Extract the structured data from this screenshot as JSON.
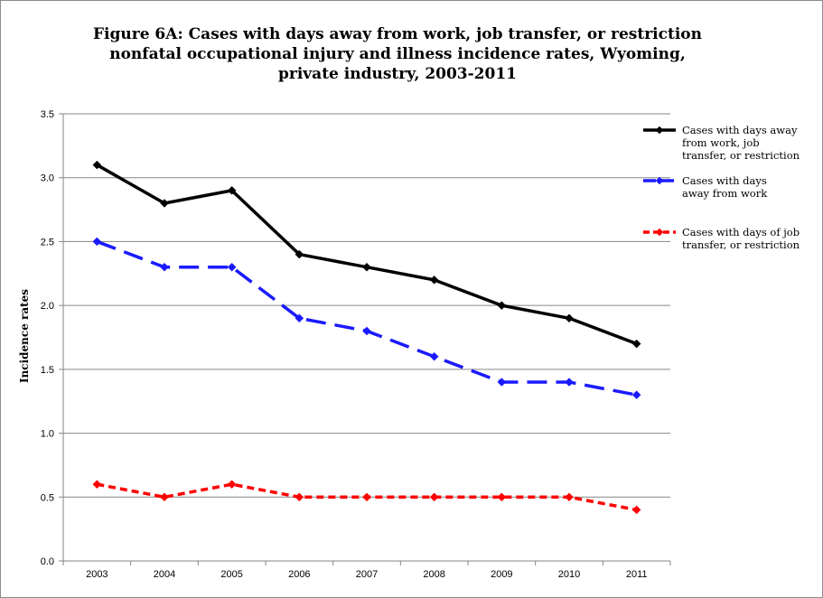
{
  "chart_data": {
    "type": "line",
    "title_lines": [
      "Figure 6A: Cases with days away from work, job transfer, or restriction",
      "nonfatal occupational injury and illness incidence rates, Wyoming,",
      "private industry, 2003-2011"
    ],
    "ylabel": "Incidence rates",
    "xlabel": "",
    "categories": [
      "2003",
      "2004",
      "2005",
      "2006",
      "2007",
      "2008",
      "2009",
      "2010",
      "2011"
    ],
    "ylim": [
      0,
      3.5
    ],
    "yticks": [
      "0.0",
      "0.5",
      "1.0",
      "1.5",
      "2.0",
      "2.5",
      "3.0",
      "3.5"
    ],
    "grid": "horizontal",
    "legend_position": "right",
    "series": [
      {
        "name": "Cases with days away from work, job transfer, or restriction",
        "legend_lines": [
          "Cases with days away",
          "from work, job",
          "transfer, or restriction"
        ],
        "values": [
          3.1,
          2.8,
          2.9,
          2.4,
          2.3,
          2.2,
          2.0,
          1.9,
          1.7
        ],
        "color": "#000000",
        "style": "solid"
      },
      {
        "name": "Cases with days away from work",
        "legend_lines": [
          "Cases with days",
          "away from work"
        ],
        "values": [
          2.5,
          2.3,
          2.3,
          1.9,
          1.8,
          1.6,
          1.4,
          1.4,
          1.3
        ],
        "color": "#1a1aff",
        "style": "long-dash"
      },
      {
        "name": "Cases with days of job transfer, or restriction",
        "legend_lines": [
          "Cases with days of job",
          "transfer, or restriction"
        ],
        "values": [
          0.6,
          0.5,
          0.6,
          0.5,
          0.5,
          0.5,
          0.5,
          0.5,
          0.4
        ],
        "color": "#ff0000",
        "style": "short-dash"
      }
    ]
  }
}
